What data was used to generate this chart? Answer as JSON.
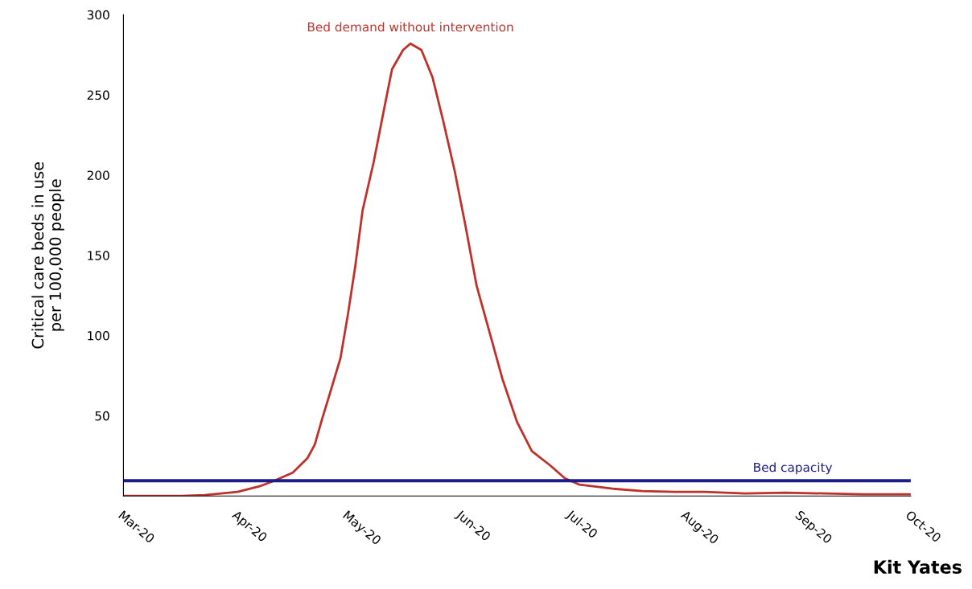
{
  "chart_data": {
    "type": "line",
    "ylabel": "Critical care beds in use\nper 100,000 people",
    "x": [
      "2020-03-01",
      "2020-03-17",
      "2020-03-23",
      "2020-04-01",
      "2020-04-07",
      "2020-04-11",
      "2020-04-16",
      "2020-04-20",
      "2020-04-22",
      "2020-04-24",
      "2020-04-26",
      "2020-04-29",
      "2020-05-01",
      "2020-05-03",
      "2020-05-05",
      "2020-05-08",
      "2020-05-11",
      "2020-05-13",
      "2020-05-16",
      "2020-05-18",
      "2020-05-21",
      "2020-05-24",
      "2020-05-27",
      "2020-05-30",
      "2020-06-02",
      "2020-06-05",
      "2020-06-09",
      "2020-06-12",
      "2020-06-16",
      "2020-06-20",
      "2020-06-25",
      "2020-06-29",
      "2020-07-03",
      "2020-07-12",
      "2020-07-20",
      "2020-07-29",
      "2020-08-06",
      "2020-08-17",
      "2020-08-28",
      "2020-09-08",
      "2020-09-18",
      "2020-10-01"
    ],
    "series": [
      {
        "name": "Bed demand without intervention",
        "color": "#c0302a",
        "values": [
          0,
          0,
          0.5,
          2.5,
          6,
          9.5,
          14.5,
          23.5,
          32,
          48,
          63,
          86,
          113,
          143,
          178,
          208,
          243,
          266,
          278,
          282,
          278,
          261,
          233,
          203,
          168,
          131,
          98,
          73,
          46,
          28,
          19,
          11,
          7,
          4.5,
          3,
          2.5,
          2.5,
          1.5,
          2,
          1.5,
          1,
          1
        ]
      }
    ],
    "xlim": [
      "2020-03-01",
      "2020-10-01"
    ],
    "xticks": [
      {
        "value": "2020-03-01",
        "label": "Mar-20"
      },
      {
        "value": "2020-04-01",
        "label": "Apr-20"
      },
      {
        "value": "2020-05-01",
        "label": "May-20"
      },
      {
        "value": "2020-06-01",
        "label": "Jun-20"
      },
      {
        "value": "2020-07-01",
        "label": "Jul-20"
      },
      {
        "value": "2020-08-01",
        "label": "Aug-20"
      },
      {
        "value": "2020-09-01",
        "label": "Sep-20"
      },
      {
        "value": "2020-10-01",
        "label": "Oct-20"
      }
    ],
    "ylim": [
      0,
      300
    ],
    "yticks": [
      50,
      100,
      150,
      200,
      250,
      300
    ],
    "ref_lines": [
      {
        "axis": "y",
        "value": 9.5,
        "label": "Bed capacity",
        "color": "#1c1c8c"
      }
    ],
    "annotations": [
      "Kit Yates"
    ],
    "grid": false,
    "legend": false,
    "marker": "none",
    "line_style": "solid"
  }
}
